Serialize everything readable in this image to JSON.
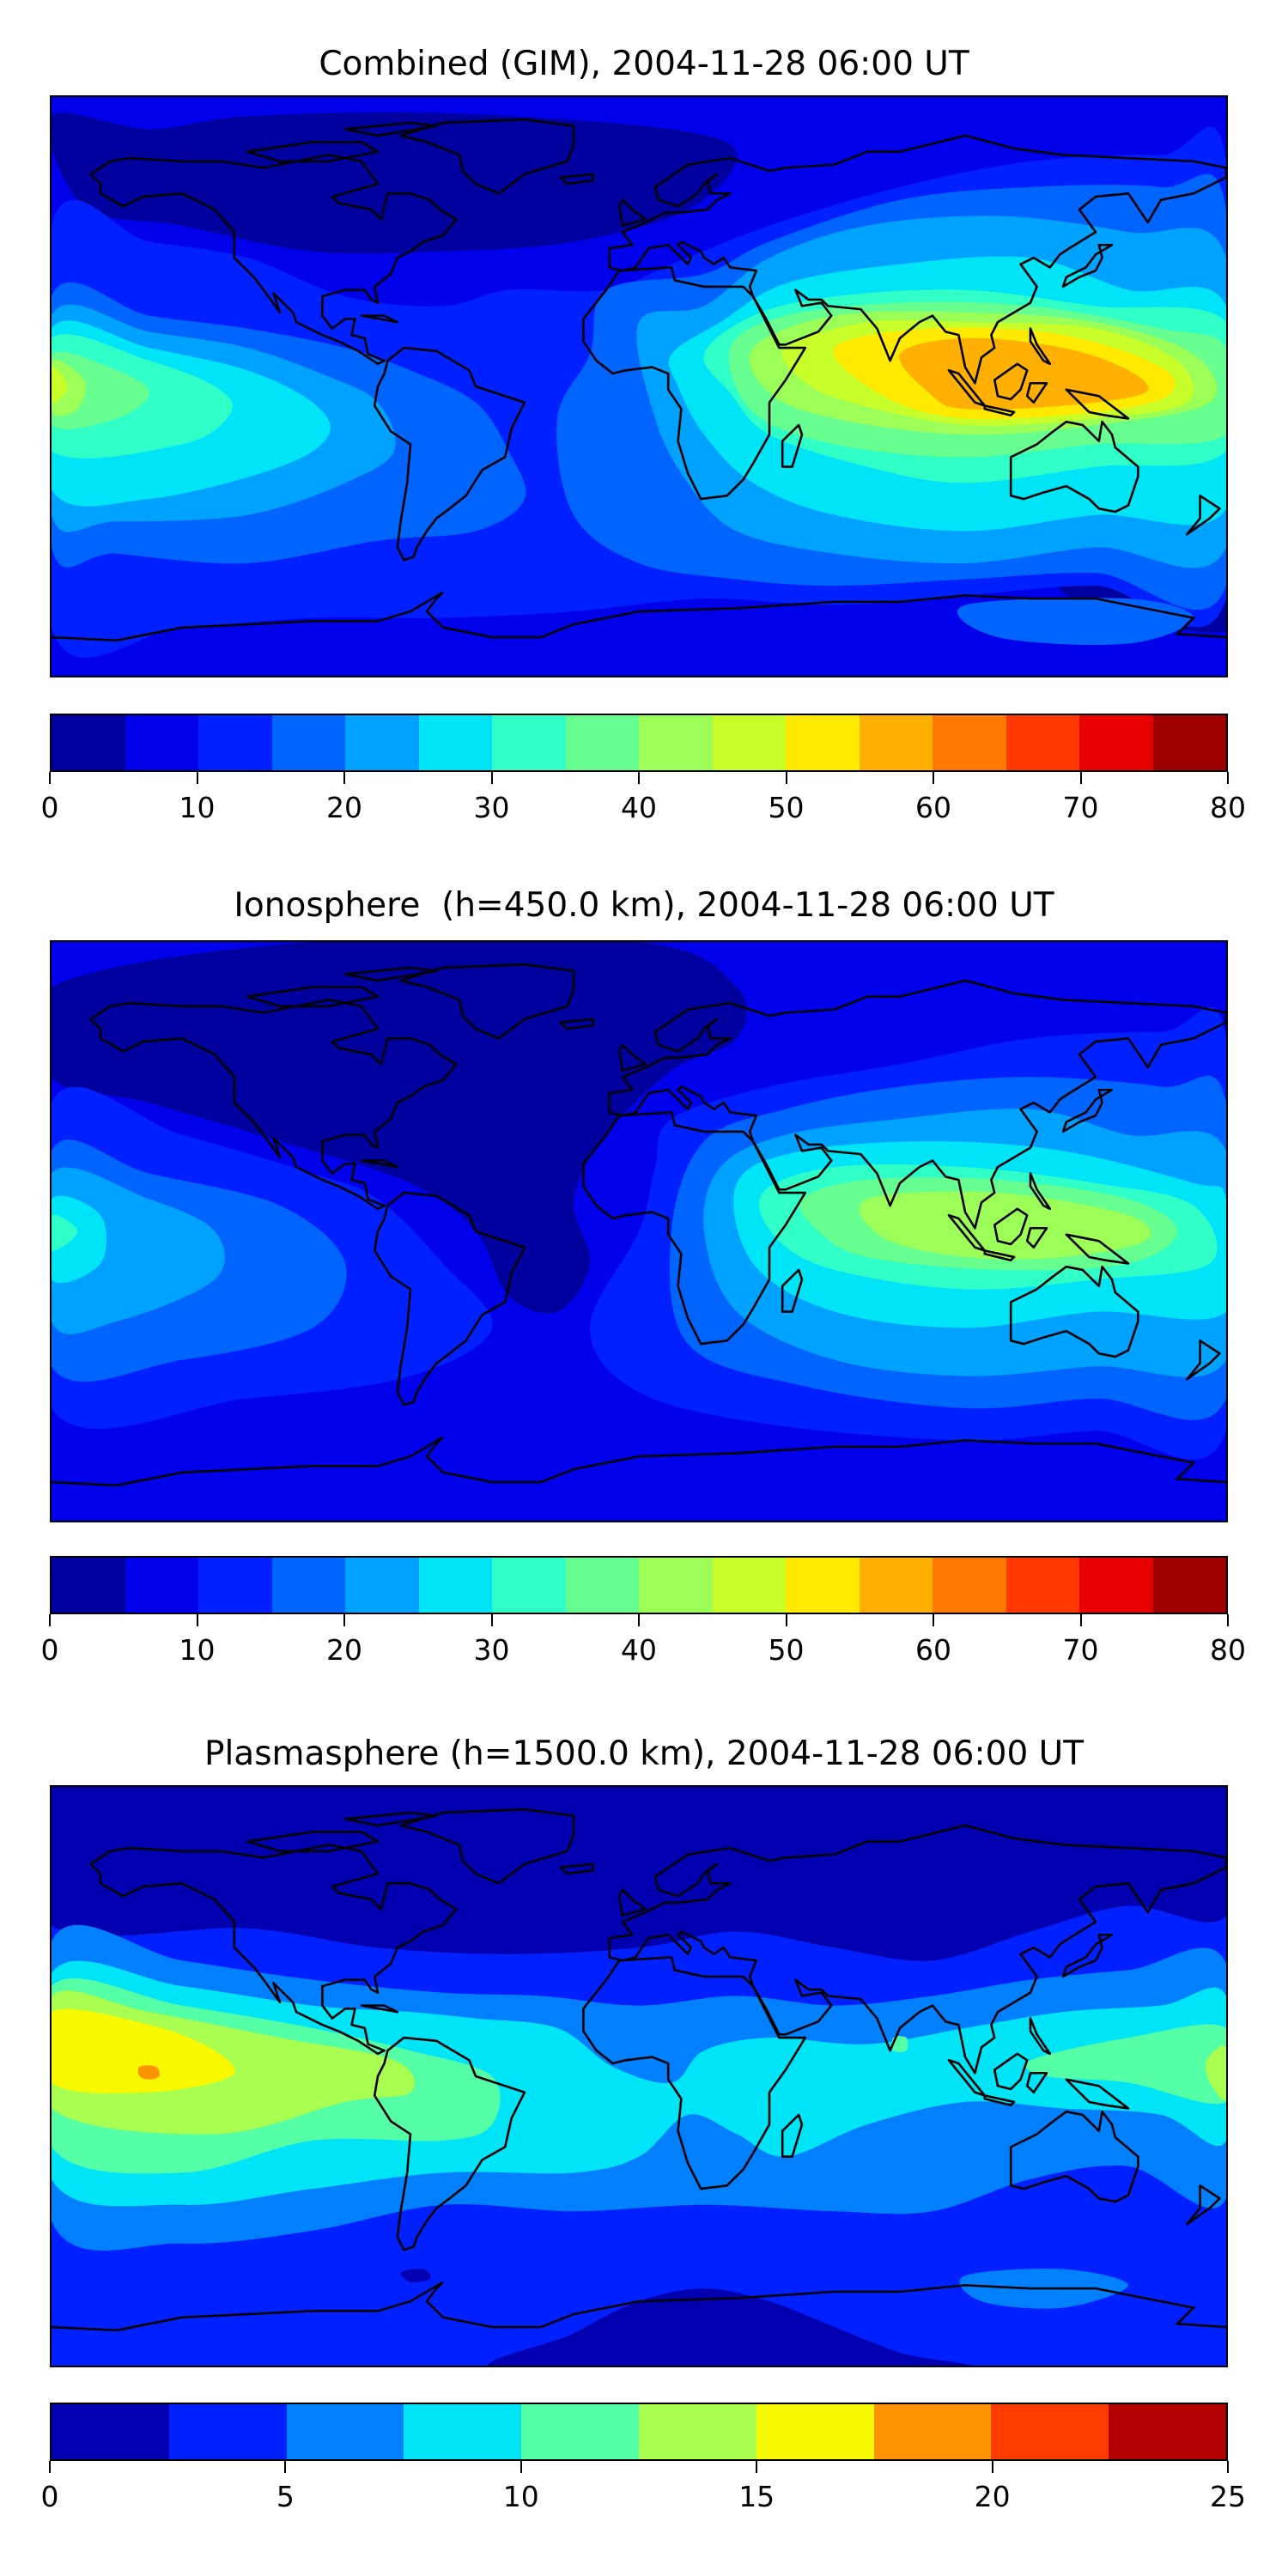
{
  "chart_data": [
    {
      "type": "heatmap",
      "subtype": "filled-contour world map",
      "title": "Combined (GIM), 2004-11-28 06:00 UT",
      "projection": "plate carree, lon -180..180, lat -90..90",
      "colorbar": {
        "range": [
          0,
          80
        ],
        "levels": [
          0,
          5,
          10,
          15,
          20,
          25,
          30,
          35,
          40,
          45,
          50,
          55,
          60,
          65,
          70,
          75,
          80
        ],
        "ticks": [
          "0",
          "10",
          "20",
          "30",
          "40",
          "50",
          "60",
          "70",
          "80"
        ],
        "colors": [
          "#00009f",
          "#0000ea",
          "#0020ff",
          "#0064ff",
          "#00a2ff",
          "#00e4f8",
          "#30ffc8",
          "#66ff90",
          "#9cff58",
          "#c8ff2a",
          "#ffea00",
          "#ffb000",
          "#ff7800",
          "#ff3800",
          "#e80000",
          "#9c0000"
        ]
      },
      "features": {
        "maximum_region": "Southeast Asia / Indonesia, 55-60",
        "secondary_maximum": "Central Pacific (west edge), 45-50",
        "minimum_region": "North America / North Atlantic, 0-5"
      }
    },
    {
      "type": "heatmap",
      "subtype": "filled-contour world map",
      "title": "Ionosphere  (h=450.0 km), 2004-11-28 06:00 UT",
      "projection": "plate carree, lon -180..180, lat -90..90",
      "colorbar": {
        "range": [
          0,
          80
        ],
        "levels": [
          0,
          5,
          10,
          15,
          20,
          25,
          30,
          35,
          40,
          45,
          50,
          55,
          60,
          65,
          70,
          75,
          80
        ],
        "ticks": [
          "0",
          "10",
          "20",
          "30",
          "40",
          "50",
          "60",
          "70",
          "80"
        ],
        "colors": [
          "#00009f",
          "#0000ea",
          "#0020ff",
          "#0064ff",
          "#00a2ff",
          "#00e4f8",
          "#30ffc8",
          "#66ff90",
          "#9cff58",
          "#c8ff2a",
          "#ffea00",
          "#ffb000",
          "#ff7800",
          "#ff3800",
          "#e80000",
          "#9c0000"
        ]
      },
      "features": {
        "maximum_region": "Southeast Asia / Indonesia, 40-45",
        "minimum_region": "Americas / Atlantic, 0-5"
      }
    },
    {
      "type": "heatmap",
      "subtype": "filled-contour world map",
      "title": "Plasmasphere (h=1500.0 km), 2004-11-28 06:00 UT",
      "projection": "plate carree, lon -180..180, lat -90..90",
      "colorbar": {
        "range": [
          0,
          25
        ],
        "levels": [
          0,
          2.5,
          5,
          7.5,
          10,
          12.5,
          15,
          17.5,
          20,
          22.5,
          25
        ],
        "ticks": [
          "0",
          "5",
          "10",
          "15",
          "20",
          "25"
        ],
        "colors": [
          "#0000b0",
          "#0020ff",
          "#0080ff",
          "#00e4f8",
          "#55ffa5",
          "#a8ff50",
          "#f8f800",
          "#ff9400",
          "#ff3c00",
          "#b00000"
        ]
      },
      "features": {
        "maximum_region": "Eastern Pacific near equator, 17.5-20",
        "minimum_region": "Northern high latitudes and Antarctic sector, 0-2.5"
      }
    }
  ]
}
